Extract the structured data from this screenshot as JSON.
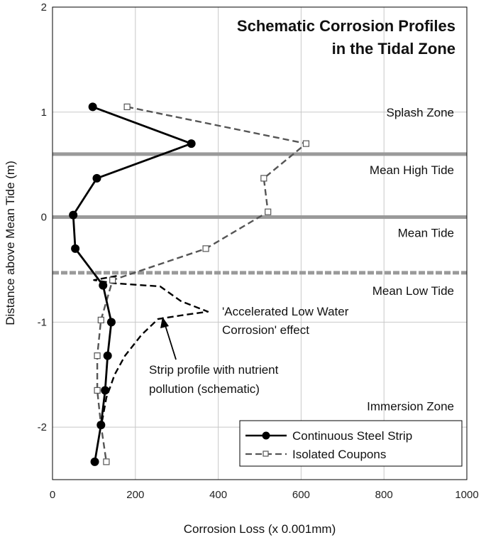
{
  "chart_data": {
    "type": "line",
    "title": "Schematic  Corrosion Profiles",
    "subtitle": "in the Tidal Zone",
    "xlabel": "Corrosion Loss (x 0.001mm)",
    "ylabel": "Distance above Mean Tide (m)",
    "xlim": [
      0,
      1000
    ],
    "ylim": [
      -2.5,
      2
    ],
    "xticks": [
      "0",
      "200",
      "400",
      "600",
      "800",
      "1000"
    ],
    "yticks": [
      "2",
      "1",
      "0",
      "-1",
      "-2"
    ],
    "grid": true,
    "legend_position": "bottom-right",
    "zone_lines": [
      {
        "y": 0.6,
        "style": "solid",
        "color": "#9a9a9a"
      },
      {
        "y": 0.0,
        "style": "solid",
        "color": "#9a9a9a"
      },
      {
        "y": -0.53,
        "style": "dashed",
        "color": "#9a9a9a"
      }
    ],
    "zone_labels": [
      {
        "text": "Splash Zone",
        "y": 1.0
      },
      {
        "text": "Mean High Tide",
        "y": 0.45
      },
      {
        "text": "Mean Tide",
        "y": -0.15
      },
      {
        "text": "Mean Low Tide",
        "y": -0.7
      },
      {
        "text": "Immersion Zone",
        "y": -1.8
      }
    ],
    "series": [
      {
        "name": "Continuous Steel Strip",
        "style": "solid",
        "marker": "circle",
        "color": "#000000",
        "points": [
          [
            97,
            1.05
          ],
          [
            335,
            0.7
          ],
          [
            107,
            0.37
          ],
          [
            50,
            0.02
          ],
          [
            55,
            -0.3
          ],
          [
            122,
            -0.65
          ],
          [
            142,
            -1.0
          ],
          [
            133,
            -1.32
          ],
          [
            127,
            -1.65
          ],
          [
            117,
            -1.98
          ],
          [
            102,
            -2.33
          ]
        ]
      },
      {
        "name": "Isolated Coupons",
        "style": "dashed",
        "marker": "square",
        "color": "#555555",
        "points": [
          [
            180,
            1.05
          ],
          [
            612,
            0.7
          ],
          [
            510,
            0.37
          ],
          [
            520,
            0.05
          ],
          [
            370,
            -0.3
          ],
          [
            145,
            -0.6
          ],
          [
            117,
            -0.98
          ],
          [
            108,
            -1.32
          ],
          [
            108,
            -1.65
          ],
          [
            117,
            -1.98
          ],
          [
            130,
            -2.33
          ]
        ]
      },
      {
        "name": "Strip profile with nutrient pollution (schematic)",
        "style": "dashed",
        "marker": "none",
        "color": "#000000",
        "points": [
          [
            155,
            -0.56
          ],
          [
            100,
            -0.6
          ],
          [
            150,
            -0.63
          ],
          [
            260,
            -0.66
          ],
          [
            310,
            -0.8
          ],
          [
            375,
            -0.9
          ],
          [
            320,
            -0.93
          ],
          [
            255,
            -0.97
          ],
          [
            215,
            -1.12
          ],
          [
            175,
            -1.32
          ],
          [
            150,
            -1.5
          ],
          [
            130,
            -1.72
          ],
          [
            118,
            -1.98
          ]
        ]
      }
    ],
    "annotations": [
      {
        "lines": [
          "'Accelerated Low Water",
          "Corrosion' effect"
        ]
      },
      {
        "lines": [
          "Strip profile with nutrient",
          "pollution (schematic)"
        ]
      }
    ]
  }
}
